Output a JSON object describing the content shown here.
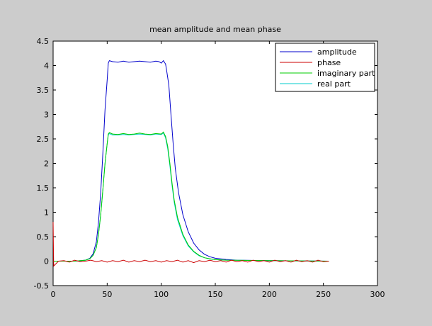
{
  "chart_data": {
    "type": "line",
    "title": "mean amplitude and mean phase",
    "xlabel": "",
    "ylabel": "",
    "xlim": [
      0,
      300
    ],
    "ylim": [
      -0.5,
      4.5
    ],
    "x_ticks": [
      "0",
      "50",
      "100",
      "150",
      "200",
      "250",
      "300"
    ],
    "y_ticks": [
      "-0.5",
      "0",
      "0.5",
      "1",
      "1.5",
      "2",
      "2.5",
      "3",
      "3.5",
      "4",
      "4.5"
    ],
    "grid": false,
    "legend_position": "top-right",
    "series": [
      {
        "name": "amplitude",
        "color": "#0000cc",
        "points": [
          [
            0,
            0
          ],
          [
            20,
            0
          ],
          [
            30,
            0.02
          ],
          [
            34,
            0.06
          ],
          [
            37,
            0.15
          ],
          [
            40,
            0.4
          ],
          [
            42,
            0.8
          ],
          [
            44,
            1.4
          ],
          [
            46,
            2.2
          ],
          [
            48,
            3.1
          ],
          [
            50,
            3.7
          ],
          [
            51,
            4.05
          ],
          [
            52,
            4.1
          ],
          [
            55,
            4.08
          ],
          [
            60,
            4.07
          ],
          [
            65,
            4.09
          ],
          [
            70,
            4.07
          ],
          [
            75,
            4.08
          ],
          [
            80,
            4.09
          ],
          [
            85,
            4.08
          ],
          [
            90,
            4.07
          ],
          [
            95,
            4.09
          ],
          [
            98,
            4.08
          ],
          [
            100,
            4.05
          ],
          [
            102,
            4.1
          ],
          [
            104,
            4.03
          ],
          [
            105,
            3.9
          ],
          [
            107,
            3.6
          ],
          [
            109,
            3.0
          ],
          [
            111,
            2.4
          ],
          [
            113,
            1.9
          ],
          [
            116,
            1.4
          ],
          [
            120,
            0.95
          ],
          [
            125,
            0.6
          ],
          [
            130,
            0.37
          ],
          [
            135,
            0.23
          ],
          [
            140,
            0.14
          ],
          [
            145,
            0.09
          ],
          [
            150,
            0.06
          ],
          [
            160,
            0.035
          ],
          [
            170,
            0.02
          ],
          [
            200,
            0.01
          ],
          [
            255,
            0.0
          ]
        ]
      },
      {
        "name": "phase",
        "color": "#cc0000",
        "points": [
          [
            0,
            0.8
          ],
          [
            0.5,
            -0.1
          ],
          [
            5,
            0
          ],
          [
            10,
            0.01
          ],
          [
            15,
            -0.02
          ],
          [
            20,
            0.02
          ],
          [
            25,
            -0.01
          ],
          [
            30,
            0
          ],
          [
            35,
            0.02
          ],
          [
            40,
            -0.01
          ],
          [
            45,
            0.01
          ],
          [
            50,
            -0.02
          ],
          [
            55,
            0.01
          ],
          [
            60,
            -0.01
          ],
          [
            65,
            0.02
          ],
          [
            70,
            -0.02
          ],
          [
            75,
            0.01
          ],
          [
            80,
            -0.01
          ],
          [
            85,
            0.02
          ],
          [
            90,
            -0.01
          ],
          [
            95,
            0.01
          ],
          [
            100,
            -0.02
          ],
          [
            105,
            0.01
          ],
          [
            110,
            -0.01
          ],
          [
            115,
            0.02
          ],
          [
            120,
            -0.02
          ],
          [
            125,
            0.01
          ],
          [
            130,
            -0.03
          ],
          [
            135,
            0.01
          ],
          [
            140,
            -0.01
          ],
          [
            145,
            0.02
          ],
          [
            150,
            -0.01
          ],
          [
            155,
            0.01
          ],
          [
            160,
            -0.02
          ],
          [
            165,
            0.02
          ],
          [
            170,
            -0.01
          ],
          [
            175,
            0.01
          ],
          [
            180,
            -0.02
          ],
          [
            185,
            0.02
          ],
          [
            190,
            -0.01
          ],
          [
            195,
            0.01
          ],
          [
            200,
            -0.02
          ],
          [
            205,
            0.02
          ],
          [
            210,
            -0.01
          ],
          [
            215,
            0.01
          ],
          [
            220,
            -0.02
          ],
          [
            225,
            0.02
          ],
          [
            230,
            -0.01
          ],
          [
            235,
            0.01
          ],
          [
            240,
            -0.02
          ],
          [
            245,
            0.02
          ],
          [
            250,
            -0.01
          ],
          [
            255,
            0
          ]
        ]
      },
      {
        "name": "imaginary part",
        "color": "#00cc00",
        "points": [
          [
            0,
            0
          ],
          [
            20,
            0
          ],
          [
            30,
            0.02
          ],
          [
            34,
            0.05
          ],
          [
            37,
            0.12
          ],
          [
            40,
            0.28
          ],
          [
            42,
            0.55
          ],
          [
            44,
            0.95
          ],
          [
            46,
            1.45
          ],
          [
            48,
            2.0
          ],
          [
            50,
            2.4
          ],
          [
            51,
            2.6
          ],
          [
            52,
            2.63
          ],
          [
            55,
            2.6
          ],
          [
            60,
            2.59
          ],
          [
            65,
            2.61
          ],
          [
            70,
            2.59
          ],
          [
            75,
            2.6
          ],
          [
            80,
            2.62
          ],
          [
            85,
            2.6
          ],
          [
            90,
            2.59
          ],
          [
            95,
            2.61
          ],
          [
            100,
            2.6
          ],
          [
            102,
            2.64
          ],
          [
            104,
            2.55
          ],
          [
            106,
            2.35
          ],
          [
            108,
            2.0
          ],
          [
            110,
            1.6
          ],
          [
            112,
            1.25
          ],
          [
            115,
            0.9
          ],
          [
            120,
            0.55
          ],
          [
            125,
            0.33
          ],
          [
            130,
            0.2
          ],
          [
            135,
            0.12
          ],
          [
            140,
            0.07
          ],
          [
            145,
            0.05
          ],
          [
            150,
            0.03
          ],
          [
            160,
            0.02
          ],
          [
            200,
            0.01
          ],
          [
            255,
            0.0
          ]
        ]
      },
      {
        "name": "real part",
        "color": "#00cccc",
        "points": [
          [
            0,
            0
          ],
          [
            20,
            0
          ],
          [
            30,
            0.02
          ],
          [
            34,
            0.05
          ],
          [
            37,
            0.12
          ],
          [
            40,
            0.28
          ],
          [
            42,
            0.55
          ],
          [
            44,
            0.95
          ],
          [
            46,
            1.45
          ],
          [
            48,
            2.0
          ],
          [
            50,
            2.4
          ],
          [
            51,
            2.58
          ],
          [
            52,
            2.61
          ],
          [
            55,
            2.58
          ],
          [
            60,
            2.58
          ],
          [
            65,
            2.59
          ],
          [
            70,
            2.58
          ],
          [
            75,
            2.59
          ],
          [
            80,
            2.6
          ],
          [
            85,
            2.59
          ],
          [
            90,
            2.58
          ],
          [
            95,
            2.6
          ],
          [
            100,
            2.59
          ],
          [
            102,
            2.62
          ],
          [
            104,
            2.52
          ],
          [
            106,
            2.3
          ],
          [
            108,
            1.95
          ],
          [
            110,
            1.55
          ],
          [
            112,
            1.2
          ],
          [
            115,
            0.85
          ],
          [
            120,
            0.52
          ],
          [
            125,
            0.31
          ],
          [
            130,
            0.19
          ],
          [
            135,
            0.11
          ],
          [
            140,
            0.07
          ],
          [
            145,
            0.045
          ],
          [
            150,
            0.03
          ],
          [
            160,
            0.02
          ],
          [
            200,
            0.01
          ],
          [
            255,
            0.0
          ]
        ]
      }
    ]
  }
}
